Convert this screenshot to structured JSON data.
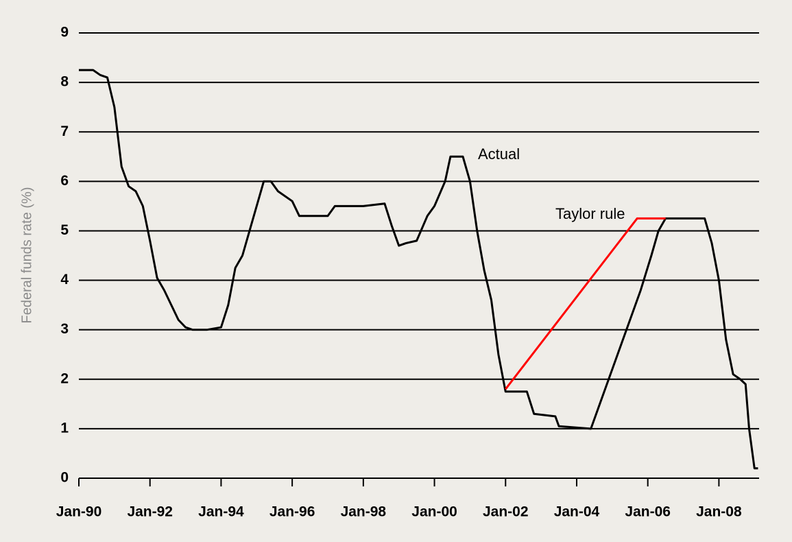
{
  "chart_data": {
    "type": "line",
    "y_label": "Federal funds rate (%)",
    "annotations": [
      "Actual",
      "Taylor rule"
    ],
    "xlim": [
      1990,
      2009.13
    ],
    "xticks": [
      {
        "value": 1990,
        "label": "Jan-90"
      },
      {
        "value": 1992,
        "label": "Jan-92"
      },
      {
        "value": 1994,
        "label": "Jan-94"
      },
      {
        "value": 1996,
        "label": "Jan-96"
      },
      {
        "value": 1998,
        "label": "Jan-98"
      },
      {
        "value": 2000,
        "label": "Jan-00"
      },
      {
        "value": 2002,
        "label": "Jan-02"
      },
      {
        "value": 2004,
        "label": "Jan-04"
      },
      {
        "value": 2006,
        "label": "Jan-06"
      },
      {
        "value": 2008,
        "label": "Jan-08"
      }
    ],
    "ylim": [
      0,
      9
    ],
    "yticks": [
      0,
      1,
      2,
      3,
      4,
      5,
      6,
      7,
      8,
      9
    ],
    "grid": true,
    "series": [
      {
        "name": "Actual",
        "color": "#000000",
        "x": [
          1990.0,
          1990.4,
          1990.6,
          1990.8,
          1991.0,
          1991.2,
          1991.4,
          1991.6,
          1991.8,
          1992.0,
          1992.2,
          1992.4,
          1992.6,
          1992.8,
          1993.0,
          1993.2,
          1993.6,
          1994.0,
          1994.2,
          1994.4,
          1994.6,
          1994.8,
          1995.0,
          1995.2,
          1995.4,
          1995.6,
          1996.0,
          1996.2,
          1996.6,
          1997.0,
          1997.2,
          1997.6,
          1998.0,
          1998.6,
          1998.8,
          1999.0,
          1999.2,
          1999.5,
          1999.8,
          2000.0,
          2000.3,
          2000.45,
          2000.8,
          2001.0,
          2001.2,
          2001.4,
          2001.6,
          2001.8,
          2002.0,
          2002.6,
          2002.8,
          2003.4,
          2003.5,
          2004.4,
          2004.6,
          2004.9,
          2005.2,
          2005.5,
          2005.8,
          2006.1,
          2006.3,
          2006.5,
          2007.0,
          2007.6,
          2007.8,
          2008.0,
          2008.2,
          2008.4,
          2008.6,
          2008.75,
          2008.85,
          2009.0,
          2009.1
        ],
        "values": [
          8.25,
          8.25,
          8.15,
          8.1,
          7.5,
          6.3,
          5.9,
          5.8,
          5.5,
          4.8,
          4.05,
          3.8,
          3.5,
          3.2,
          3.05,
          3.0,
          3.0,
          3.05,
          3.5,
          4.25,
          4.5,
          5.0,
          5.5,
          6.0,
          6.0,
          5.8,
          5.6,
          5.3,
          5.3,
          5.3,
          5.5,
          5.5,
          5.5,
          5.55,
          5.1,
          4.7,
          4.75,
          4.8,
          5.3,
          5.5,
          6.0,
          6.5,
          6.5,
          6.0,
          5.0,
          4.2,
          3.6,
          2.5,
          1.75,
          1.75,
          1.3,
          1.25,
          1.05,
          1.0,
          1.4,
          2.0,
          2.6,
          3.2,
          3.8,
          4.5,
          5.0,
          5.25,
          5.25,
          5.25,
          4.75,
          4.0,
          2.8,
          2.1,
          2.0,
          1.9,
          1.0,
          0.2,
          0.2
        ]
      },
      {
        "name": "Taylor rule",
        "color": "#ff0000",
        "x": [
          2002.0,
          2005.7,
          2006.5
        ],
        "values": [
          1.8,
          5.25,
          5.25
        ]
      }
    ]
  }
}
